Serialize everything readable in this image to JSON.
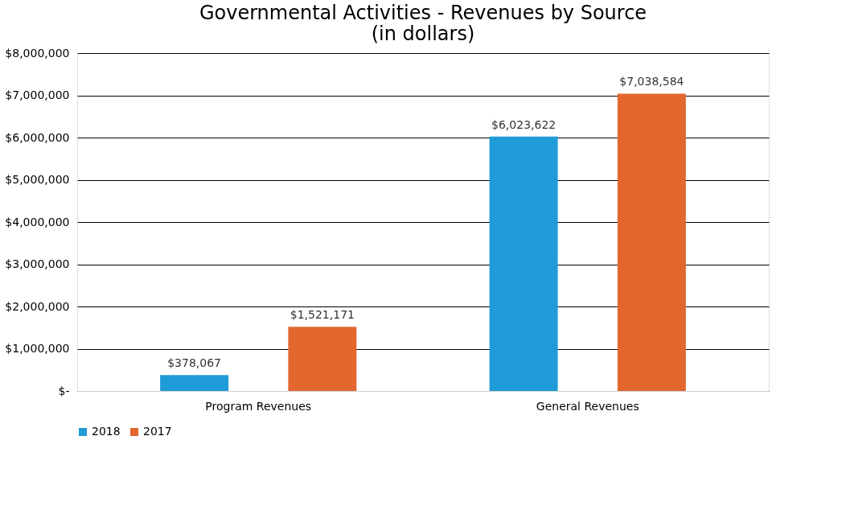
{
  "chart_data": {
    "type": "bar",
    "title": [
      "Governmental Activities - Revenues by Source",
      "(in dollars)"
    ],
    "categories": [
      "Program Revenues",
      "General Revenues"
    ],
    "series": [
      {
        "name": "2018",
        "color": "#1f9bd7",
        "values": [
          378067,
          6023622
        ],
        "value_labels": [
          "$378,067",
          "$6,023,622"
        ]
      },
      {
        "name": "2017",
        "color": "#e2672f",
        "values": [
          1521171,
          7038584
        ],
        "value_labels": [
          "$1,521,171",
          "$7,038,584"
        ]
      }
    ],
    "ylim": [
      0,
      8000000
    ],
    "yticks": [
      {
        "value": 0,
        "label": "$-"
      },
      {
        "value": 1000000,
        "label": "$1,000,000"
      },
      {
        "value": 2000000,
        "label": "$2,000,000"
      },
      {
        "value": 3000000,
        "label": "$3,000,000"
      },
      {
        "value": 4000000,
        "label": "$4,000,000"
      },
      {
        "value": 5000000,
        "label": "$5,000,000"
      },
      {
        "value": 6000000,
        "label": "$6,000,000"
      },
      {
        "value": 7000000,
        "label": "$7,000,000"
      },
      {
        "value": 8000000,
        "label": "$8,000,000"
      }
    ],
    "grid": "y",
    "legend": "bottom"
  }
}
